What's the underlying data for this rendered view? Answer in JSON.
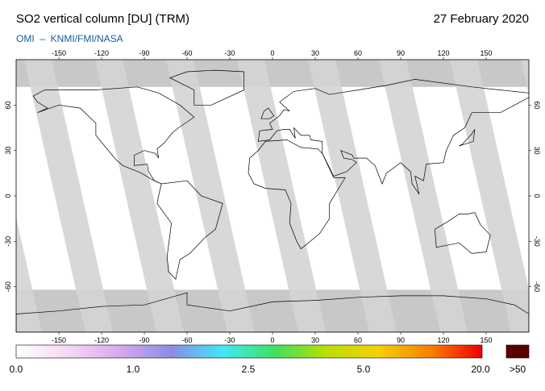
{
  "header": {
    "title": "SO2 vertical column [DU] (TRM)",
    "date": "27 February 2020",
    "credit": "OMI  –  KNMI/FMI/NASA"
  },
  "map": {
    "lonlim": [
      -180,
      180
    ],
    "latlim": [
      -90,
      90
    ],
    "lon_ticks": [
      -150,
      -120,
      -90,
      -60,
      -30,
      0,
      30,
      60,
      90,
      120,
      150
    ],
    "lat_ticks": [
      60,
      30,
      0,
      -30,
      -60
    ]
  },
  "colorbar": {
    "labels": [
      "0.0",
      "1.0",
      "2.5",
      "5.0",
      "20.0"
    ],
    "overflow_label": ">50",
    "colors": [
      "#ffffff",
      "#f4d8f4",
      "#d8a8f0",
      "#8c8ce8",
      "#40e8f8",
      "#40e060",
      "#b8e000",
      "#f8d000",
      "#f88000",
      "#f00000"
    ],
    "overflow_color": "#5a0000"
  }
}
